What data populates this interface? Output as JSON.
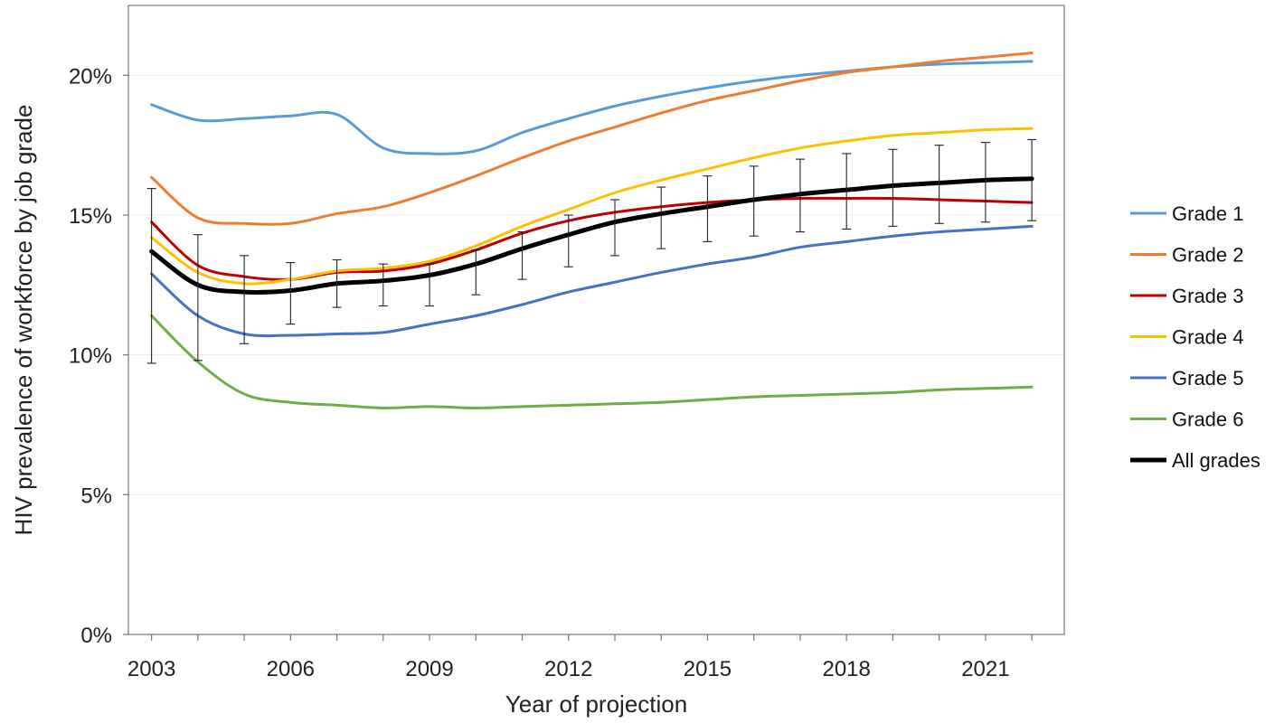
{
  "chart_data": {
    "type": "line",
    "title": "",
    "xlabel": "Year of projection",
    "ylabel": "HIV prevalence of workforce by job grade",
    "xlim": [
      2002.5,
      2022.7
    ],
    "ylim": [
      0,
      22.5
    ],
    "x_ticks": [
      2003,
      2006,
      2009,
      2012,
      2015,
      2018,
      2021
    ],
    "x_tick_labels": [
      "2003",
      "2006",
      "2009",
      "2012",
      "2015",
      "2018",
      "2021"
    ],
    "y_ticks": [
      0,
      5,
      10,
      15,
      20
    ],
    "y_tick_labels": [
      "0%",
      "5%",
      "10%",
      "15%",
      "20%"
    ],
    "grid": "horizontal",
    "legend_position": "right",
    "x": [
      2003,
      2004,
      2005,
      2006,
      2007,
      2008,
      2009,
      2010,
      2011,
      2012,
      2013,
      2014,
      2015,
      2016,
      2017,
      2018,
      2019,
      2020,
      2021,
      2022
    ],
    "series": [
      {
        "name": "Grade 1",
        "color": "#5b9bd5",
        "width": 3,
        "values": [
          18.95,
          18.4,
          18.45,
          18.55,
          18.6,
          17.4,
          17.2,
          17.3,
          17.95,
          18.45,
          18.9,
          19.25,
          19.55,
          19.8,
          20.0,
          20.15,
          20.3,
          20.4,
          20.45,
          20.5
        ]
      },
      {
        "name": "Grade 2",
        "color": "#ed7d31",
        "width": 3,
        "values": [
          16.35,
          14.9,
          14.7,
          14.7,
          15.05,
          15.3,
          15.8,
          16.4,
          17.05,
          17.65,
          18.15,
          18.65,
          19.1,
          19.45,
          19.8,
          20.1,
          20.3,
          20.5,
          20.65,
          20.8
        ]
      },
      {
        "name": "Grade 3",
        "color": "#c00000",
        "width": 3,
        "values": [
          14.75,
          13.2,
          12.8,
          12.7,
          12.95,
          13.0,
          13.25,
          13.75,
          14.35,
          14.8,
          15.1,
          15.3,
          15.45,
          15.55,
          15.6,
          15.6,
          15.6,
          15.55,
          15.5,
          15.45
        ]
      },
      {
        "name": "Grade 4",
        "color": "#ffc000",
        "width": 3,
        "values": [
          14.2,
          12.95,
          12.55,
          12.7,
          13.0,
          13.1,
          13.35,
          13.9,
          14.6,
          15.2,
          15.8,
          16.25,
          16.65,
          17.05,
          17.4,
          17.65,
          17.85,
          17.95,
          18.05,
          18.1
        ]
      },
      {
        "name": "Grade 5",
        "color": "#4472c4",
        "width": 3,
        "values": [
          12.9,
          11.4,
          10.75,
          10.7,
          10.75,
          10.8,
          11.1,
          11.4,
          11.8,
          12.25,
          12.6,
          12.95,
          13.25,
          13.5,
          13.85,
          14.05,
          14.25,
          14.4,
          14.5,
          14.6
        ]
      },
      {
        "name": "Grade 6",
        "color": "#70ad47",
        "width": 3,
        "values": [
          11.4,
          9.75,
          8.6,
          8.3,
          8.2,
          8.1,
          8.15,
          8.1,
          8.15,
          8.2,
          8.25,
          8.3,
          8.4,
          8.5,
          8.55,
          8.6,
          8.65,
          8.75,
          8.8,
          8.85
        ]
      },
      {
        "name": "All grades",
        "color": "#000000",
        "width": 5,
        "values": [
          13.7,
          12.5,
          12.25,
          12.3,
          12.55,
          12.65,
          12.85,
          13.25,
          13.8,
          14.3,
          14.75,
          15.05,
          15.3,
          15.55,
          15.75,
          15.9,
          16.05,
          16.15,
          16.25,
          16.3
        ],
        "error_low": [
          9.7,
          9.8,
          10.4,
          11.1,
          11.7,
          11.75,
          11.75,
          12.15,
          12.7,
          13.15,
          13.55,
          13.8,
          14.05,
          14.25,
          14.4,
          14.5,
          14.6,
          14.7,
          14.75,
          14.8
        ],
        "error_high": [
          15.95,
          14.3,
          13.55,
          13.3,
          13.4,
          13.25,
          13.25,
          13.75,
          14.4,
          15.0,
          15.55,
          16.0,
          16.4,
          16.75,
          17.0,
          17.2,
          17.35,
          17.5,
          17.6,
          17.7
        ]
      }
    ]
  }
}
